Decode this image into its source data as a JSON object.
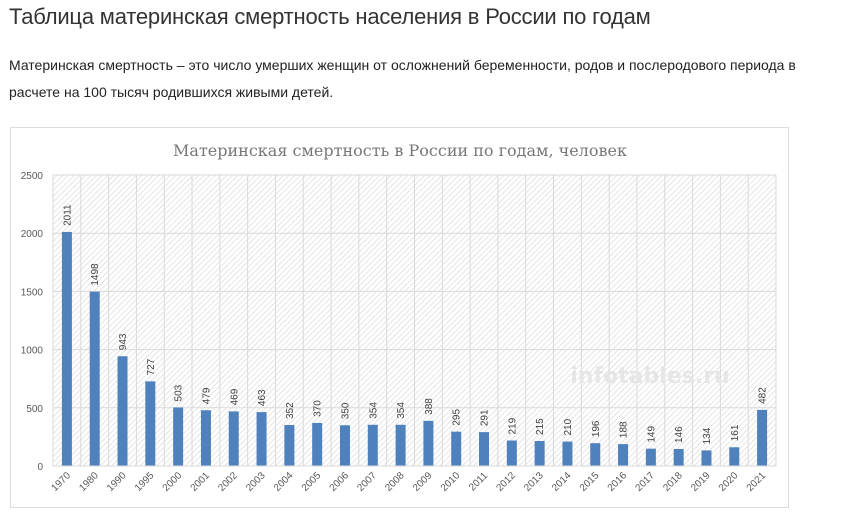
{
  "page": {
    "heading": "Таблица материнская смертность населения в России по годам",
    "description": "Материнская смертность – это число умерших женщин от осложнений беременности, родов и послеродового периода в расчете на 100 тысяч родившихся живыми детей."
  },
  "chart_data": {
    "type": "bar",
    "title": "Материнская смертность в России по годам, человек",
    "watermark": "infotables.ru",
    "xlabel": "",
    "ylabel": "",
    "ylim": [
      0,
      2500
    ],
    "yticks": [
      0,
      500,
      1000,
      1500,
      2000,
      2500
    ],
    "grid": true,
    "bar_color": "#4f81bd",
    "categories": [
      "1970",
      "1980",
      "1990",
      "1995",
      "2000",
      "2001",
      "2002",
      "2003",
      "2004",
      "2005",
      "2006",
      "2007",
      "2008",
      "2009",
      "2010",
      "2011",
      "2012",
      "2013",
      "2014",
      "2015",
      "2016",
      "2017",
      "2018",
      "2019",
      "2020",
      "2021"
    ],
    "values": [
      2011,
      1498,
      943,
      727,
      503,
      479,
      469,
      463,
      352,
      370,
      350,
      354,
      354,
      388,
      295,
      291,
      219,
      215,
      210,
      196,
      188,
      149,
      146,
      134,
      161,
      482
    ]
  }
}
